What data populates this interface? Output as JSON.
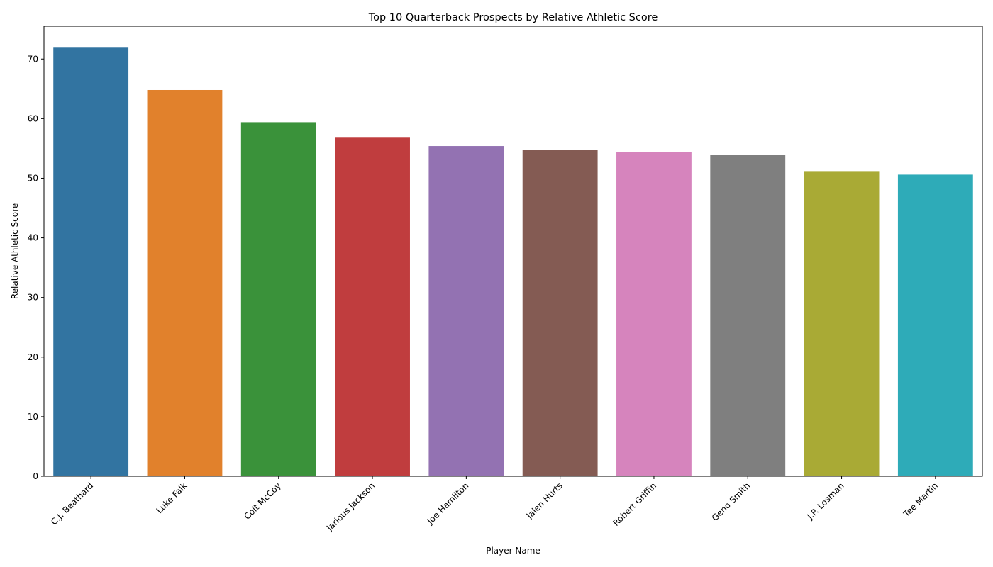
{
  "chart_data": {
    "type": "bar",
    "title": "Top 10 Quarterback Prospects by Relative Athletic Score",
    "xlabel": "Player Name",
    "ylabel": "Relative Athletic Score",
    "categories": [
      "C.J. Beathard",
      "Luke Falk",
      "Colt McCoy",
      "Jarious Jackson",
      "Joe Hamilton",
      "Jalen Hurts",
      "Robert Griffin",
      "Geno Smith",
      "J.P. Losman",
      "Tee Martin"
    ],
    "values": [
      71.9,
      64.8,
      59.4,
      56.8,
      55.4,
      54.8,
      54.4,
      53.9,
      51.2,
      50.6
    ],
    "colors": [
      "#3274a1",
      "#e1812c",
      "#3a923a",
      "#c03d3e",
      "#9372b2",
      "#845b53",
      "#d684bd",
      "#7f7f7f",
      "#a9aa35",
      "#2eabb8"
    ],
    "ylim": [
      0,
      75.5
    ],
    "yticks": [
      0,
      10,
      20,
      30,
      40,
      50,
      60,
      70
    ],
    "grid": false,
    "legend": "none",
    "xtick_rotation": 45
  }
}
